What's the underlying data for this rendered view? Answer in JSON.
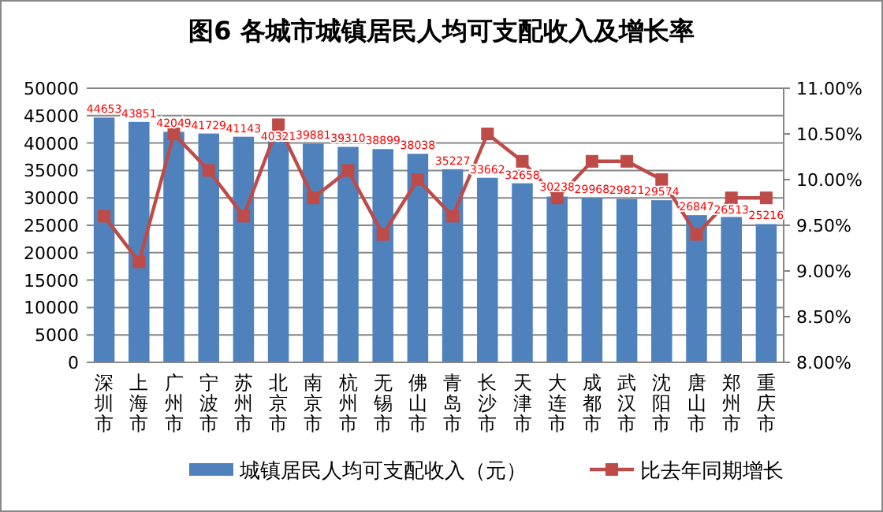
{
  "chart_data": {
    "type": "bar",
    "title": "图6 各城市城镇居民人均可支配收入及增长率",
    "categories": [
      "深圳市",
      "上海市",
      "广州市",
      "宁波市",
      "苏州市",
      "北京市",
      "南京市",
      "杭州市",
      "无锡市",
      "佛山市",
      "青岛市",
      "长沙市",
      "天津市",
      "大连市",
      "成都市",
      "武汉市",
      "沈阳市",
      "唐山市",
      "郑州市",
      "重庆市"
    ],
    "series": [
      {
        "name": "城镇居民人均可支配收入（元）",
        "color": "#4f81bd",
        "values": [
          44653,
          43851,
          42049,
          41729,
          41143,
          40321,
          39881,
          39310,
          38899,
          38038,
          35227,
          33662,
          32658,
          30238,
          29968,
          29821,
          29574,
          26847,
          26513,
          25216
        ],
        "value_labels": [
          "44653",
          "43851",
          "42049",
          "41729",
          "41143",
          "40321",
          "39881",
          "39310",
          "38899",
          "38038",
          "35227",
          "33662",
          "32658",
          "30238",
          "29968",
          "29821",
          "29574",
          "26847",
          "26513",
          "25216"
        ]
      },
      {
        "name": "比去年同期增长",
        "type": "line",
        "axis": "y2",
        "color": "#be4b48",
        "marker": "square",
        "values": [
          9.6,
          9.1,
          10.5,
          10.1,
          9.6,
          10.6,
          9.8,
          10.1,
          9.4,
          10.0,
          9.6,
          10.5,
          10.2,
          9.8,
          10.2,
          10.2,
          10.0,
          9.4,
          9.8,
          9.8
        ]
      }
    ],
    "ylim": [
      0,
      50000
    ],
    "yticks": [
      0,
      5000,
      10000,
      15000,
      20000,
      25000,
      30000,
      35000,
      40000,
      45000,
      50000
    ],
    "y2lim": [
      8,
      11
    ],
    "y2ticks": [
      {
        "value": 8,
        "label": "8.00%"
      },
      {
        "value": 8.5,
        "label": "8.50%"
      },
      {
        "value": 9,
        "label": "9.00%"
      },
      {
        "value": 9.5,
        "label": "9.50%"
      },
      {
        "value": 10,
        "label": "10.00%"
      },
      {
        "value": 10.5,
        "label": "10.50%"
      },
      {
        "value": 11,
        "label": "11.00%"
      }
    ],
    "grid": "y",
    "legend": "bottom"
  }
}
